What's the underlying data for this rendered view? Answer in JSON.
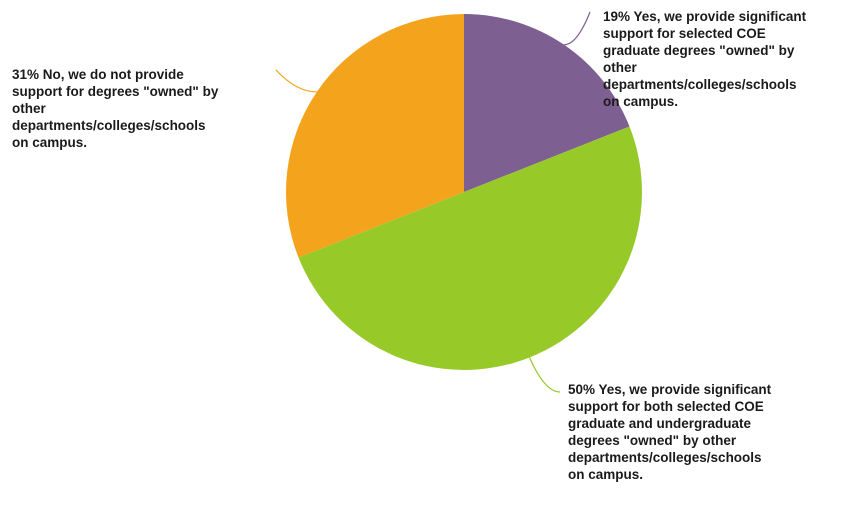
{
  "chart_data": {
    "type": "pie",
    "title": "",
    "slices": [
      {
        "value": 19,
        "label": "19% Yes, we provide significant\nsupport for selected COE\ngraduate degrees \"owned\" by\nother\ndepartments/colleges/schools\non campus.",
        "color": "#7d5f91"
      },
      {
        "value": 50,
        "label": "50% Yes, we provide significant\nsupport for both selected COE\ngraduate and undergraduate\ndegrees \"owned\" by other\ndepartments/colleges/schools\non campus.",
        "color": "#97c928"
      },
      {
        "value": 31,
        "label": "31% No, we do not provide\nsupport for degrees \"owned\" by\nother\ndepartments/colleges/schools\non campus.",
        "color": "#f4a41c"
      }
    ],
    "start_angle": "12 o'clock",
    "direction": "clockwise",
    "legend": "none"
  }
}
